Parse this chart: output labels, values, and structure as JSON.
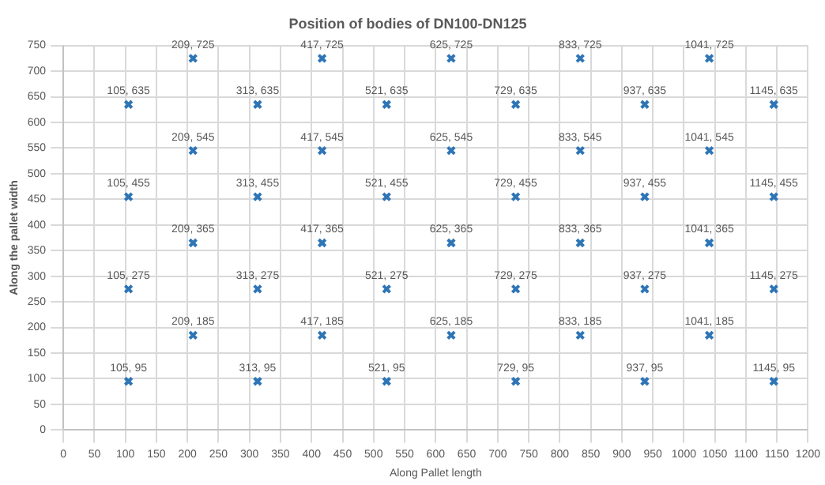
{
  "chart_data": {
    "type": "scatter",
    "title": "Position of bodies of DN100-DN125",
    "xlabel": "Along Pallet length",
    "ylabel": "Along the pallet width",
    "x": [
      209,
      417,
      625,
      833,
      1041,
      105,
      313,
      521,
      729,
      937,
      1145,
      209,
      417,
      625,
      833,
      1041,
      105,
      313,
      521,
      729,
      937,
      1145,
      209,
      417,
      625,
      833,
      1041,
      105,
      313,
      521,
      729,
      937,
      1145,
      209,
      417,
      625,
      833,
      1041,
      105,
      313,
      521,
      729,
      937,
      1145
    ],
    "values": [
      725,
      725,
      725,
      725,
      725,
      635,
      635,
      635,
      635,
      635,
      635,
      545,
      545,
      545,
      545,
      545,
      455,
      455,
      455,
      455,
      455,
      455,
      365,
      365,
      365,
      365,
      365,
      275,
      275,
      275,
      275,
      275,
      275,
      185,
      185,
      185,
      185,
      185,
      95,
      95,
      95,
      95,
      95,
      95
    ],
    "value_labels": [
      "209, 725",
      "417, 725",
      "625, 725",
      "833, 725",
      "1041, 725",
      "105, 635",
      "313, 635",
      "521, 635",
      "729, 635",
      "937, 635",
      "1145, 635",
      "209, 545",
      "417, 545",
      "625, 545",
      "833, 545",
      "1041, 545",
      "105, 455",
      "313, 455",
      "521, 455",
      "729, 455",
      "937, 455",
      "1145, 455",
      "209, 365",
      "417, 365",
      "625, 365",
      "833, 365",
      "1041, 365",
      "105, 275",
      "313, 275",
      "521, 275",
      "729, 275",
      "937, 275",
      "1145, 275",
      "209, 185",
      "417, 185",
      "625, 185",
      "833, 185",
      "1041, 185",
      "105, 95",
      "313, 95",
      "521, 95",
      "729, 95",
      "937, 95",
      "1145, 95"
    ],
    "color": "#2e75b6",
    "marker": "cross",
    "grid": true,
    "xlim": [
      0,
      1200
    ],
    "xticks": [
      0,
      50,
      100,
      150,
      200,
      250,
      300,
      350,
      400,
      450,
      500,
      550,
      600,
      650,
      700,
      750,
      800,
      850,
      900,
      950,
      1000,
      1050,
      1100,
      1150,
      1200
    ],
    "ylim": [
      0,
      750
    ],
    "yticks": [
      0,
      50,
      100,
      150,
      200,
      250,
      300,
      350,
      400,
      450,
      500,
      550,
      600,
      650,
      700,
      750
    ]
  }
}
